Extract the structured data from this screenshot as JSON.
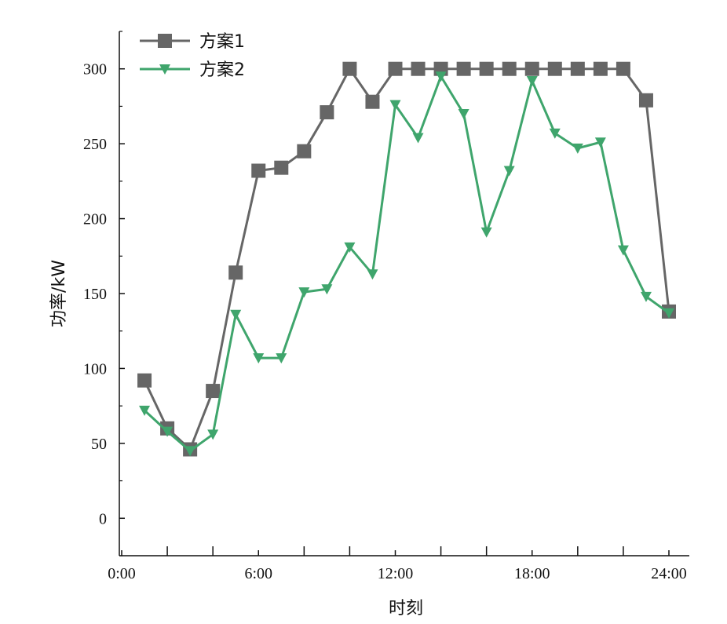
{
  "chart_data": {
    "type": "line",
    "xlabel": "时刻",
    "ylabel": "功率/kW",
    "x_ticks": [
      "0:00",
      "6:00",
      "12:00",
      "18:00",
      "24:00"
    ],
    "x_tick_hours": [
      0,
      6,
      12,
      18,
      24
    ],
    "y_ticks": [
      0,
      50,
      100,
      150,
      200,
      250,
      300
    ],
    "xlim": [
      0,
      24
    ],
    "ylim": [
      -25,
      325
    ],
    "grid": false,
    "legend_position": "top-left",
    "x": [
      1,
      2,
      3,
      4,
      5,
      6,
      7,
      8,
      9,
      10,
      11,
      12,
      13,
      14,
      15,
      16,
      17,
      18,
      19,
      20,
      21,
      22,
      23,
      24
    ],
    "series": [
      {
        "name": "方案1",
        "color": "#666666",
        "marker": "square",
        "values": [
          92,
          60,
          46,
          85,
          164,
          232,
          234,
          245,
          271,
          300,
          278,
          300,
          300,
          300,
          300,
          300,
          300,
          300,
          300,
          300,
          300,
          300,
          279,
          138
        ]
      },
      {
        "name": "方案2",
        "color": "#3fa56c",
        "marker": "triangle-down",
        "values": [
          72,
          58,
          45,
          56,
          136,
          107,
          107,
          151,
          153,
          181,
          163,
          276,
          254,
          295,
          270,
          191,
          232,
          292,
          257,
          247,
          251,
          179,
          148,
          137
        ]
      }
    ]
  }
}
